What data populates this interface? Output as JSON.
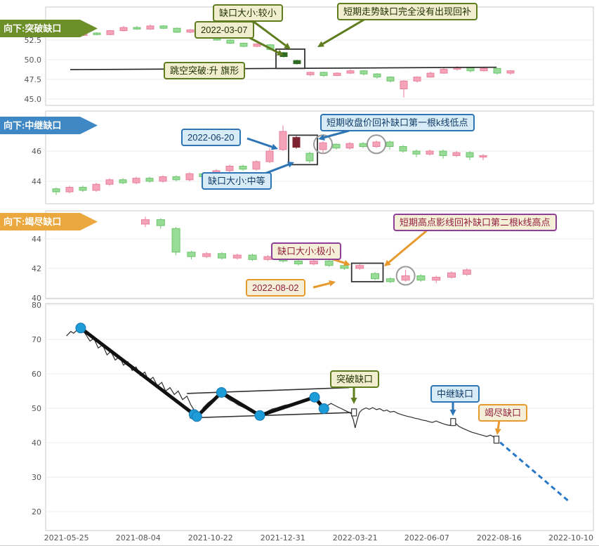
{
  "colors": {
    "olive": "#5f7d1f",
    "blue": "#2e75b6",
    "orange": "#e8992e",
    "purple": "#8e3f97",
    "tag_breakaway": "#6d8f2a",
    "tag_continuation": "#3f88c5",
    "tag_exhaustion": "#eaa83e",
    "candle_up": "#f4a3b8",
    "candle_up_stroke": "#e87f9b",
    "candle_down": "#98dc98",
    "candle_down_stroke": "#6cc46c",
    "candle_dark": "#2f6b22",
    "candle_maroon": "#7e2430",
    "dot": "#1e9cd7",
    "forecast": "#2878c8"
  },
  "annotations": {
    "p1": {
      "panel_label": "向下:突破缺口",
      "gap_size": "缺口大小:较小",
      "date": "2022-03-07",
      "note": "短期走势缺口完全没有出现回补",
      "pattern": "跳空突破:升  旗形"
    },
    "p2": {
      "panel_label": "向下:中继缺口",
      "date": "2022-06-20",
      "note": "短期收盘价回补缺口第一根k线低点",
      "gap_size": "缺口大小:中等"
    },
    "p3": {
      "panel_label": "向下:竭尽缺口",
      "note": "短期高点影线回补缺口第二根k线高点",
      "gap_size": "缺口大小:极小",
      "date": "2022-08-02"
    },
    "p4": {
      "breakaway": "突破缺口",
      "continuation": "中继缺口",
      "exhaustion": "竭尽缺口"
    }
  },
  "chart_data": [
    {
      "type": "candlestick",
      "title": "向下:突破缺口",
      "ylim": [
        44.2,
        56.7
      ],
      "yticks": [
        {
          "v": 52.5,
          "label": "52.5"
        },
        {
          "v": 50.0,
          "label": "50.0"
        },
        {
          "v": 47.5,
          "label": "47.5"
        },
        {
          "v": 45.0,
          "label": "45.0"
        }
      ],
      "candles": [
        [
          53.3,
          53.1,
          53.0,
          53.4
        ],
        [
          53.1,
          53.4,
          53.0,
          53.5
        ],
        [
          53.4,
          53.2,
          53.1,
          53.5
        ],
        [
          53.2,
          53.7,
          53.1,
          53.8
        ],
        [
          53.7,
          54.1,
          53.6,
          54.3
        ],
        [
          54.1,
          53.9,
          53.8,
          54.3
        ],
        [
          53.9,
          54.3,
          53.8,
          54.5
        ],
        [
          54.3,
          54.0,
          53.9,
          54.4
        ],
        [
          54.0,
          53.5,
          53.4,
          54.1
        ],
        [
          53.5,
          53.8,
          53.4,
          53.9
        ],
        [
          53.8,
          53.1,
          53.0,
          53.9
        ],
        [
          53.1,
          52.5,
          52.4,
          53.2
        ],
        [
          52.5,
          52.1,
          52.0,
          52.6
        ],
        [
          52.1,
          51.7,
          51.6,
          52.2
        ],
        [
          51.7,
          52.0,
          51.6,
          52.1
        ],
        [
          51.9,
          51.3,
          51.2,
          52.0
        ],
        [
          50.9,
          50.4,
          50.3,
          51.0,
          "dark"
        ],
        [
          49.9,
          49.5,
          49.4,
          50.0,
          "dark"
        ],
        [
          48.1,
          48.4,
          47.9,
          48.5
        ],
        [
          48.4,
          48.0,
          47.8,
          48.5
        ],
        [
          48.0,
          48.3,
          47.9,
          48.4
        ],
        [
          48.3,
          48.6,
          48.2,
          48.8
        ],
        [
          48.6,
          48.2,
          48.0,
          48.7
        ],
        [
          48.2,
          47.8,
          47.6,
          48.3
        ],
        [
          47.8,
          47.3,
          47.1,
          47.9
        ],
        [
          46.3,
          47.3,
          45.2,
          47.4
        ],
        [
          47.3,
          47.8,
          47.1,
          47.9
        ],
        [
          47.8,
          48.3,
          47.7,
          48.5
        ],
        [
          48.3,
          48.8,
          48.2,
          49.0
        ],
        [
          48.8,
          49.0,
          48.6,
          49.2
        ],
        [
          49.0,
          48.6,
          48.4,
          49.1
        ],
        [
          48.6,
          48.9,
          48.5,
          49.0
        ],
        [
          48.9,
          48.3,
          48.1,
          49.0
        ],
        [
          48.3,
          48.6,
          48.1,
          48.7
        ]
      ]
    },
    {
      "type": "candlestick",
      "title": "向下:中继缺口",
      "ylim": [
        42.51,
        48.65
      ],
      "yticks": [
        {
          "v": 46,
          "label": "46"
        },
        {
          "v": 44,
          "label": "44"
        }
      ],
      "candles": [
        [
          43.5,
          43.3,
          43.1,
          43.6
        ],
        [
          43.3,
          43.6,
          43.2,
          43.7
        ],
        [
          43.6,
          43.4,
          43.3,
          43.7
        ],
        [
          43.4,
          43.8,
          43.3,
          43.9
        ],
        [
          43.8,
          44.1,
          43.7,
          44.2
        ],
        [
          44.1,
          43.9,
          43.8,
          44.2
        ],
        [
          43.9,
          44.2,
          43.8,
          44.3
        ],
        [
          44.2,
          44.0,
          43.9,
          44.3
        ],
        [
          44.0,
          44.3,
          43.9,
          44.4
        ],
        [
          44.3,
          44.1,
          44.0,
          44.4
        ],
        [
          44.1,
          44.5,
          44.0,
          44.6
        ],
        [
          44.5,
          44.3,
          44.2,
          44.6
        ],
        [
          44.3,
          44.7,
          44.2,
          44.8
        ],
        [
          44.7,
          45.0,
          44.6,
          45.1
        ],
        [
          45.0,
          44.8,
          44.7,
          45.1
        ],
        [
          44.8,
          45.3,
          44.7,
          45.4
        ],
        [
          45.3,
          46.0,
          45.2,
          46.2
        ],
        [
          46.1,
          47.3,
          46.0,
          47.7
        ],
        [
          46.9,
          46.25,
          46.15,
          47.0,
          "maroon"
        ],
        [
          45.85,
          45.35,
          45.2,
          45.95
        ],
        [
          46.1,
          46.55,
          45.9,
          46.65
        ],
        [
          46.45,
          46.2,
          46.1,
          46.5
        ],
        [
          46.2,
          46.5,
          46.1,
          46.6
        ],
        [
          46.5,
          46.3,
          46.2,
          46.6
        ],
        [
          46.3,
          46.6,
          46.2,
          46.7
        ],
        [
          46.6,
          46.3,
          46.1,
          46.7
        ],
        [
          46.3,
          46.0,
          45.9,
          46.4
        ],
        [
          46.0,
          45.8,
          45.6,
          46.1
        ],
        [
          45.8,
          46.0,
          45.7,
          46.1
        ],
        [
          46.0,
          45.7,
          45.5,
          46.1
        ],
        [
          45.7,
          45.9,
          45.6,
          46.0
        ],
        [
          45.9,
          45.6,
          45.4,
          46.0
        ],
        [
          45.6,
          45.7,
          45.4,
          45.8
        ]
      ]
    },
    {
      "type": "candlestick",
      "title": "向下:竭尽缺口",
      "ylim": [
        39.95,
        45.9
      ],
      "yticks": [
        {
          "v": 44,
          "label": "44"
        },
        {
          "v": 42,
          "label": "42"
        },
        {
          "v": 40,
          "label": "40"
        }
      ],
      "candles": [
        [
          45.0,
          45.3,
          44.8,
          45.5
        ],
        [
          45.3,
          44.9,
          44.7,
          45.4
        ],
        [
          44.7,
          43.1,
          42.9,
          44.8
        ],
        [
          43.1,
          42.8,
          42.6,
          43.2
        ],
        [
          42.8,
          43.0,
          42.7,
          43.1
        ],
        [
          43.0,
          42.7,
          42.6,
          43.1
        ],
        [
          42.7,
          42.9,
          42.6,
          43.0
        ],
        [
          42.9,
          42.6,
          42.5,
          43.0
        ],
        [
          42.6,
          42.8,
          42.5,
          42.9
        ],
        [
          42.8,
          42.5,
          42.4,
          42.9
        ],
        [
          42.5,
          42.3,
          42.2,
          42.6
        ],
        [
          42.3,
          42.5,
          42.2,
          42.6
        ],
        [
          42.5,
          42.2,
          42.1,
          42.6
        ],
        [
          42.2,
          42.0,
          41.9,
          42.3
        ],
        [
          42.0,
          42.2,
          41.9,
          42.3
        ],
        [
          41.65,
          41.3,
          41.2,
          41.75
        ],
        [
          41.3,
          41.1,
          41.0,
          41.4
        ],
        [
          41.2,
          41.5,
          41.1,
          41.9
        ],
        [
          41.5,
          41.2,
          41.1,
          41.6
        ],
        [
          41.2,
          41.4,
          41.0,
          41.5
        ],
        [
          41.4,
          41.7,
          41.3,
          41.8
        ],
        [
          41.6,
          41.9,
          41.5,
          42.0
        ]
      ]
    },
    {
      "type": "line",
      "ylim": [
        14.5,
        80.4
      ],
      "yticks": [
        {
          "v": 80,
          "label": "80"
        },
        {
          "v": 70,
          "label": "70"
        },
        {
          "v": 60,
          "label": "60"
        },
        {
          "v": 50,
          "label": "50"
        },
        {
          "v": 40,
          "label": "40"
        },
        {
          "v": 30,
          "label": "30"
        },
        {
          "v": 20,
          "label": "20"
        }
      ],
      "xticks": [
        {
          "t": 0.038,
          "label": "2021-05-25"
        },
        {
          "t": 0.169,
          "label": "2021-08-04"
        },
        {
          "t": 0.301,
          "label": "2021-10-22"
        },
        {
          "t": 0.433,
          "label": "2021-12-31"
        },
        {
          "t": 0.565,
          "label": "2022-03-21"
        },
        {
          "t": 0.696,
          "label": "2022-06-07"
        },
        {
          "t": 0.828,
          "label": "2022-08-16"
        },
        {
          "t": 0.959,
          "label": "2022-10-10"
        }
      ],
      "price": [
        [
          0.038,
          71.0
        ],
        [
          0.046,
          72.3
        ],
        [
          0.051,
          71.8
        ],
        [
          0.058,
          72.8
        ],
        [
          0.064,
          73.3
        ],
        [
          0.073,
          71.5
        ],
        [
          0.081,
          69.5
        ],
        [
          0.088,
          70.3
        ],
        [
          0.096,
          67.5
        ],
        [
          0.104,
          68.4
        ],
        [
          0.112,
          65.5
        ],
        [
          0.119,
          66.5
        ],
        [
          0.127,
          64.0
        ],
        [
          0.135,
          65.0
        ],
        [
          0.142,
          62.5
        ],
        [
          0.15,
          63.5
        ],
        [
          0.158,
          61.0
        ],
        [
          0.165,
          62.0
        ],
        [
          0.173,
          59.5
        ],
        [
          0.181,
          60.5
        ],
        [
          0.188,
          58.0
        ],
        [
          0.196,
          59.0
        ],
        [
          0.204,
          56.5
        ],
        [
          0.212,
          57.5
        ],
        [
          0.219,
          55.0
        ],
        [
          0.227,
          56.0
        ],
        [
          0.235,
          54.0
        ],
        [
          0.242,
          55.0
        ],
        [
          0.25,
          52.5
        ],
        [
          0.258,
          53.5
        ],
        [
          0.265,
          51.0
        ],
        [
          0.271,
          49.5
        ],
        [
          0.276,
          47.6
        ],
        [
          0.282,
          48.8
        ],
        [
          0.288,
          50.2
        ],
        [
          0.296,
          51.5
        ],
        [
          0.304,
          52.5
        ],
        [
          0.312,
          53.5
        ],
        [
          0.321,
          54.6
        ],
        [
          0.328,
          53.3
        ],
        [
          0.336,
          52.4
        ],
        [
          0.344,
          51.8
        ],
        [
          0.351,
          51.0
        ],
        [
          0.359,
          50.4
        ],
        [
          0.367,
          49.8
        ],
        [
          0.374,
          49.2
        ],
        [
          0.382,
          48.6
        ],
        [
          0.391,
          47.9
        ],
        [
          0.399,
          48.6
        ],
        [
          0.406,
          49.2
        ],
        [
          0.414,
          49.8
        ],
        [
          0.422,
          50.1
        ],
        [
          0.429,
          50.5
        ],
        [
          0.437,
          50.9
        ],
        [
          0.445,
          51.1
        ],
        [
          0.453,
          51.4
        ],
        [
          0.46,
          51.7
        ],
        [
          0.468,
          52.0
        ],
        [
          0.476,
          52.3
        ],
        [
          0.483,
          52.7
        ],
        [
          0.491,
          53.2
        ],
        [
          0.497,
          51.8
        ],
        [
          0.503,
          50.6
        ],
        [
          0.508,
          49.9
        ],
        [
          0.514,
          50.8
        ],
        [
          0.521,
          51.4
        ],
        [
          0.527,
          50.9
        ],
        [
          0.533,
          50.4
        ],
        [
          0.54,
          49.9
        ],
        [
          0.546,
          49.4
        ],
        [
          0.553,
          48.9
        ],
        [
          0.558,
          48.4
        ],
        [
          0.562,
          46.5
        ],
        [
          0.565,
          44.3
        ],
        [
          0.569,
          46.8
        ],
        [
          0.573,
          48.8
        ],
        [
          0.578,
          49.6
        ],
        [
          0.585,
          50.1
        ],
        [
          0.591,
          49.7
        ],
        [
          0.597,
          50.2
        ],
        [
          0.604,
          49.6
        ],
        [
          0.61,
          49.9
        ],
        [
          0.617,
          49.2
        ],
        [
          0.623,
          49.5
        ],
        [
          0.629,
          48.9
        ],
        [
          0.636,
          49.1
        ],
        [
          0.642,
          48.6
        ],
        [
          0.649,
          48.2
        ],
        [
          0.655,
          47.9
        ],
        [
          0.662,
          47.6
        ],
        [
          0.668,
          47.4
        ],
        [
          0.674,
          47.1
        ],
        [
          0.681,
          46.9
        ],
        [
          0.687,
          46.6
        ],
        [
          0.694,
          46.4
        ],
        [
          0.7,
          46.1
        ],
        [
          0.706,
          45.9
        ],
        [
          0.713,
          46.3
        ],
        [
          0.719,
          45.9
        ],
        [
          0.726,
          45.5
        ],
        [
          0.732,
          45.2
        ],
        [
          0.738,
          45.0
        ],
        [
          0.744,
          46.6
        ],
        [
          0.749,
          45.6
        ],
        [
          0.754,
          44.8
        ],
        [
          0.76,
          44.3
        ],
        [
          0.767,
          43.8
        ],
        [
          0.773,
          43.4
        ],
        [
          0.779,
          43.0
        ],
        [
          0.786,
          42.7
        ],
        [
          0.792,
          42.4
        ],
        [
          0.799,
          42.1
        ],
        [
          0.805,
          41.8
        ],
        [
          0.812,
          42.2
        ],
        [
          0.818,
          41.7
        ]
      ],
      "zigzag": [
        [
          0.064,
          73.3
        ],
        [
          0.276,
          47.6
        ],
        [
          0.321,
          54.6
        ],
        [
          0.391,
          47.9
        ],
        [
          0.491,
          53.2
        ],
        [
          0.508,
          49.9
        ]
      ],
      "pivots": [
        [
          0.064,
          73.3
        ],
        [
          0.271,
          48.2
        ],
        [
          0.276,
          47.6
        ],
        [
          0.321,
          54.6
        ],
        [
          0.391,
          47.9
        ],
        [
          0.491,
          53.2
        ],
        [
          0.508,
          49.9
        ]
      ],
      "channel": [
        [
          [
            0.258,
            54.3
          ],
          [
            0.554,
            56.0
          ]
        ],
        [
          [
            0.263,
            47.2
          ],
          [
            0.565,
            48.8
          ]
        ]
      ],
      "forecast_dashed": [
        [
          0.818,
          41.7
        ],
        [
          0.955,
          23.0
        ]
      ],
      "gap_markers": [
        [
          0.563,
          48.8
        ],
        [
          0.744,
          46.0
        ],
        [
          0.823,
          40.9
        ]
      ]
    }
  ]
}
